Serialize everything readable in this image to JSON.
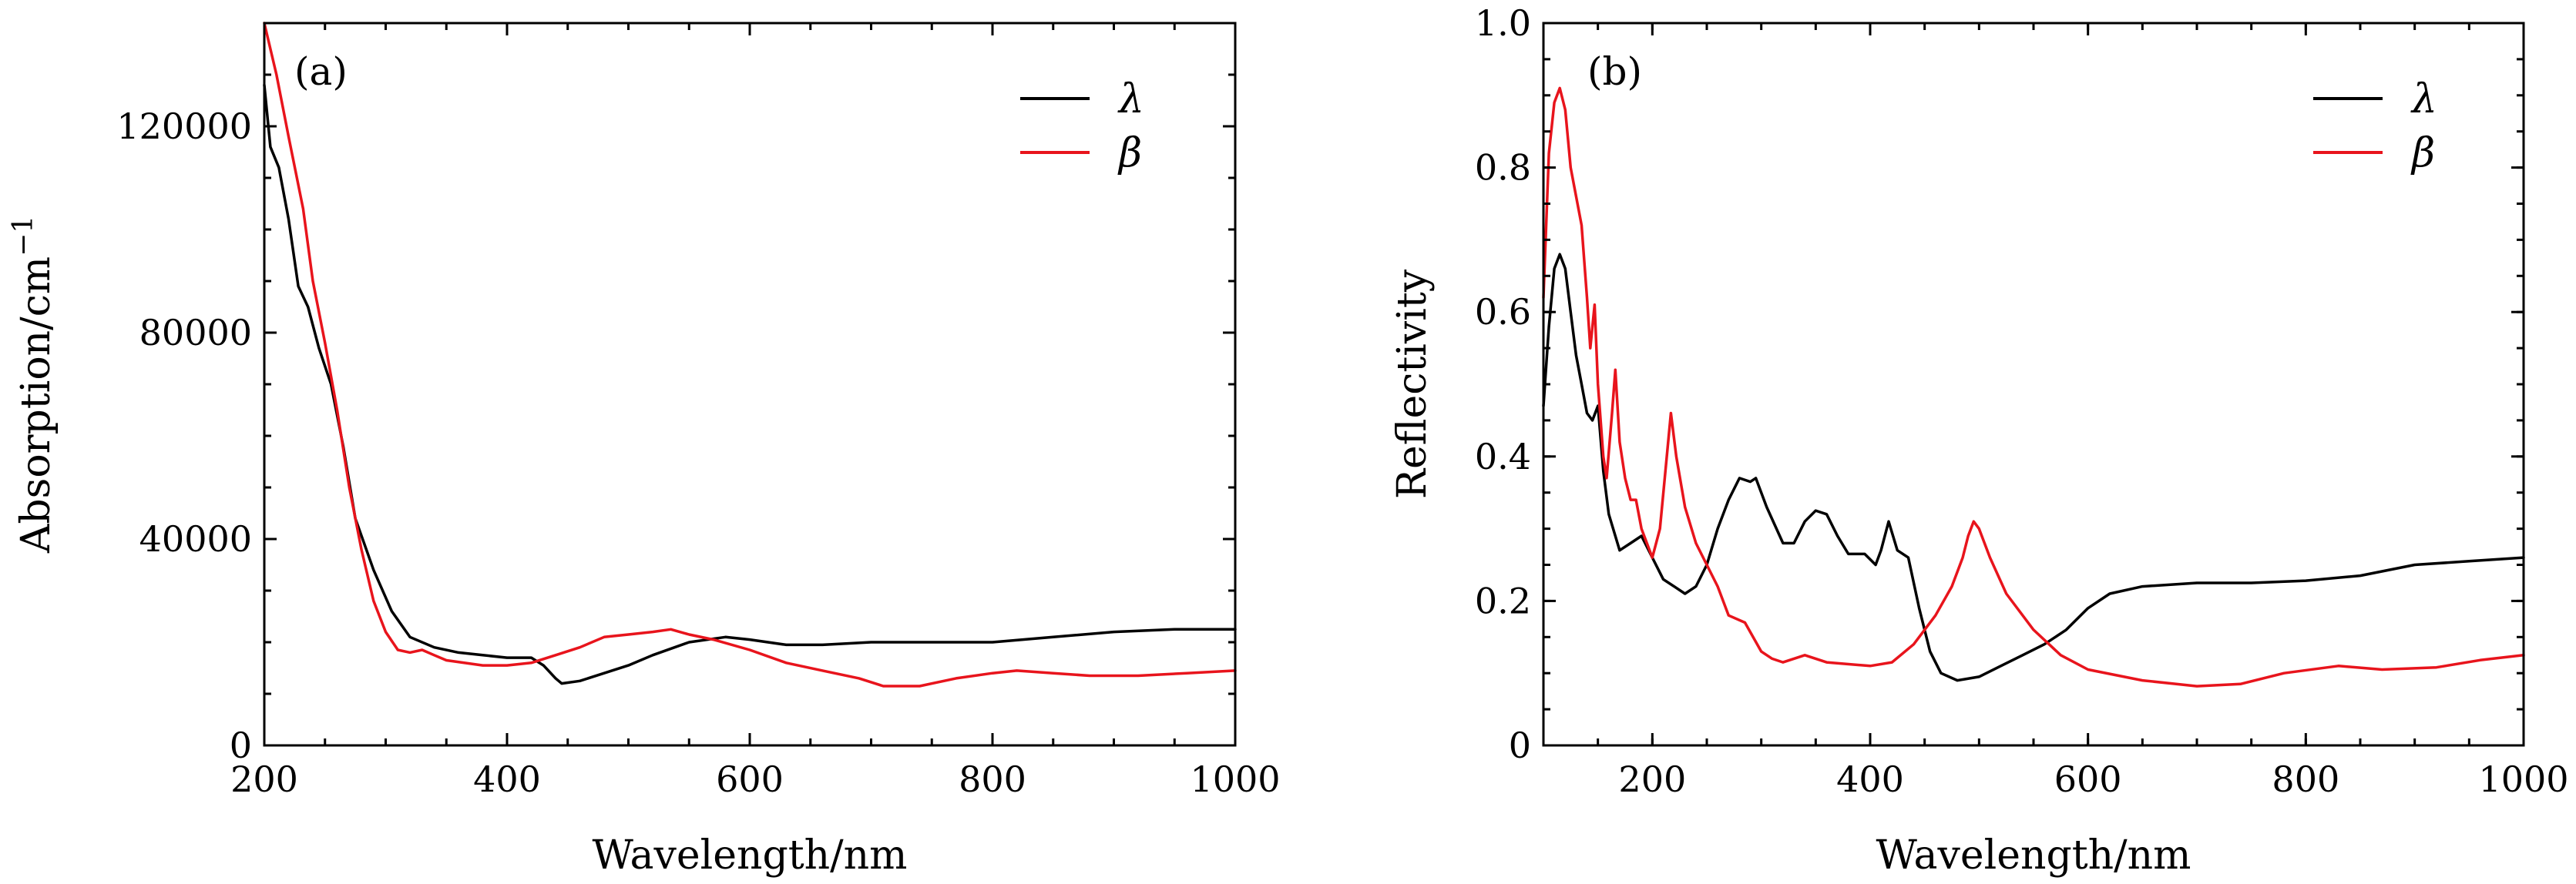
{
  "chart_data": [
    {
      "panel": "(a)",
      "type": "line",
      "xlabel": "Wavelength/nm",
      "ylabel": "Absorption/cm",
      "ylabel_sup": "−1",
      "xlim": [
        200,
        1000
      ],
      "ylim": [
        0,
        140000
      ],
      "x_ticks": [
        200,
        400,
        600,
        800,
        1000
      ],
      "x_tick_labels": [
        "200",
        "400",
        "600",
        "800",
        "1000"
      ],
      "y_ticks": [
        0,
        40000,
        80000,
        120000
      ],
      "y_tick_labels": [
        "0",
        "40000",
        "80000",
        "120000"
      ],
      "x_minor_step": 50,
      "y_minor_step": 10000,
      "legend_position": "top-right",
      "series": [
        {
          "name": "λ",
          "color": "#000000",
          "points": [
            [
              200,
              128000
            ],
            [
              205,
              116000
            ],
            [
              212,
              112000
            ],
            [
              220,
              102000
            ],
            [
              228,
              89000
            ],
            [
              236,
              85000
            ],
            [
              245,
              77000
            ],
            [
              255,
              70000
            ],
            [
              265,
              58000
            ],
            [
              275,
              44000
            ],
            [
              290,
              34000
            ],
            [
              305,
              26000
            ],
            [
              320,
              21000
            ],
            [
              340,
              19000
            ],
            [
              360,
              18000
            ],
            [
              380,
              17500
            ],
            [
              400,
              17000
            ],
            [
              420,
              17000
            ],
            [
              430,
              15500
            ],
            [
              440,
              13000
            ],
            [
              445,
              12000
            ],
            [
              460,
              12500
            ],
            [
              480,
              14000
            ],
            [
              500,
              15500
            ],
            [
              520,
              17500
            ],
            [
              550,
              20000
            ],
            [
              580,
              21000
            ],
            [
              600,
              20500
            ],
            [
              630,
              19500
            ],
            [
              660,
              19500
            ],
            [
              700,
              20000
            ],
            [
              800,
              20000
            ],
            [
              850,
              21000
            ],
            [
              900,
              22000
            ],
            [
              950,
              22500
            ],
            [
              1000,
              22500
            ]
          ]
        },
        {
          "name": "β",
          "color": "#e8141c",
          "points": [
            [
              200,
              140000
            ],
            [
              210,
              130000
            ],
            [
              220,
              118000
            ],
            [
              232,
              104000
            ],
            [
              240,
              90000
            ],
            [
              250,
              78000
            ],
            [
              260,
              65000
            ],
            [
              270,
              50000
            ],
            [
              280,
              38000
            ],
            [
              290,
              28000
            ],
            [
              300,
              22000
            ],
            [
              310,
              18500
            ],
            [
              320,
              18000
            ],
            [
              330,
              18500
            ],
            [
              340,
              17500
            ],
            [
              350,
              16500
            ],
            [
              380,
              15500
            ],
            [
              400,
              15500
            ],
            [
              420,
              16000
            ],
            [
              440,
              17500
            ],
            [
              460,
              19000
            ],
            [
              480,
              21000
            ],
            [
              500,
              21500
            ],
            [
              520,
              22000
            ],
            [
              535,
              22500
            ],
            [
              550,
              21500
            ],
            [
              570,
              20500
            ],
            [
              600,
              18500
            ],
            [
              630,
              16000
            ],
            [
              660,
              14500
            ],
            [
              690,
              13000
            ],
            [
              710,
              11500
            ],
            [
              740,
              11500
            ],
            [
              770,
              13000
            ],
            [
              800,
              14000
            ],
            [
              820,
              14500
            ],
            [
              850,
              14000
            ],
            [
              880,
              13500
            ],
            [
              920,
              13500
            ],
            [
              960,
              14000
            ],
            [
              1000,
              14500
            ]
          ]
        }
      ]
    },
    {
      "panel": "(b)",
      "type": "line",
      "xlabel": "Wavelength/nm",
      "ylabel": "Reflectivity",
      "xlim": [
        100,
        1000
      ],
      "ylim": [
        0,
        1.0
      ],
      "x_ticks": [
        200,
        400,
        600,
        800,
        1000
      ],
      "x_tick_labels": [
        "200",
        "400",
        "600",
        "800",
        "1000"
      ],
      "y_ticks": [
        0,
        0.2,
        0.4,
        0.6,
        0.8,
        1.0
      ],
      "y_tick_labels": [
        "0",
        "0.2",
        "0.4",
        "0.6",
        "0.8",
        "1.0"
      ],
      "x_minor_step": 50,
      "y_minor_step": 0.05,
      "legend_position": "top-right",
      "series": [
        {
          "name": "λ",
          "color": "#000000",
          "points": [
            [
              100,
              0.47
            ],
            [
              105,
              0.58
            ],
            [
              110,
              0.66
            ],
            [
              115,
              0.68
            ],
            [
              120,
              0.66
            ],
            [
              125,
              0.6
            ],
            [
              130,
              0.54
            ],
            [
              135,
              0.5
            ],
            [
              140,
              0.46
            ],
            [
              145,
              0.45
            ],
            [
              150,
              0.47
            ],
            [
              155,
              0.38
            ],
            [
              160,
              0.32
            ],
            [
              170,
              0.27
            ],
            [
              180,
              0.28
            ],
            [
              190,
              0.29
            ],
            [
              200,
              0.26
            ],
            [
              210,
              0.23
            ],
            [
              220,
              0.22
            ],
            [
              230,
              0.21
            ],
            [
              240,
              0.22
            ],
            [
              250,
              0.25
            ],
            [
              260,
              0.3
            ],
            [
              270,
              0.34
            ],
            [
              280,
              0.37
            ],
            [
              290,
              0.365
            ],
            [
              295,
              0.37
            ],
            [
              305,
              0.33
            ],
            [
              320,
              0.28
            ],
            [
              330,
              0.28
            ],
            [
              340,
              0.31
            ],
            [
              350,
              0.325
            ],
            [
              360,
              0.32
            ],
            [
              370,
              0.29
            ],
            [
              380,
              0.265
            ],
            [
              395,
              0.265
            ],
            [
              405,
              0.25
            ],
            [
              410,
              0.27
            ],
            [
              417,
              0.31
            ],
            [
              425,
              0.27
            ],
            [
              435,
              0.26
            ],
            [
              445,
              0.19
            ],
            [
              455,
              0.13
            ],
            [
              465,
              0.1
            ],
            [
              480,
              0.09
            ],
            [
              500,
              0.095
            ],
            [
              520,
              0.11
            ],
            [
              540,
              0.125
            ],
            [
              560,
              0.14
            ],
            [
              580,
              0.16
            ],
            [
              600,
              0.19
            ],
            [
              620,
              0.21
            ],
            [
              650,
              0.22
            ],
            [
              700,
              0.225
            ],
            [
              750,
              0.225
            ],
            [
              800,
              0.228
            ],
            [
              850,
              0.235
            ],
            [
              900,
              0.25
            ],
            [
              950,
              0.255
            ],
            [
              1000,
              0.26
            ]
          ]
        },
        {
          "name": "β",
          "color": "#e8141c",
          "points": [
            [
              100,
              0.62
            ],
            [
              105,
              0.82
            ],
            [
              110,
              0.89
            ],
            [
              115,
              0.91
            ],
            [
              120,
              0.88
            ],
            [
              125,
              0.8
            ],
            [
              130,
              0.76
            ],
            [
              135,
              0.72
            ],
            [
              140,
              0.62
            ],
            [
              143,
              0.55
            ],
            [
              147,
              0.61
            ],
            [
              150,
              0.5
            ],
            [
              155,
              0.4
            ],
            [
              158,
              0.37
            ],
            [
              163,
              0.46
            ],
            [
              166,
              0.52
            ],
            [
              170,
              0.42
            ],
            [
              175,
              0.37
            ],
            [
              180,
              0.34
            ],
            [
              185,
              0.34
            ],
            [
              190,
              0.3
            ],
            [
              200,
              0.26
            ],
            [
              207,
              0.3
            ],
            [
              212,
              0.38
            ],
            [
              217,
              0.46
            ],
            [
              222,
              0.4
            ],
            [
              230,
              0.33
            ],
            [
              240,
              0.28
            ],
            [
              250,
              0.25
            ],
            [
              260,
              0.22
            ],
            [
              270,
              0.18
            ],
            [
              285,
              0.17
            ],
            [
              300,
              0.13
            ],
            [
              310,
              0.12
            ],
            [
              320,
              0.115
            ],
            [
              340,
              0.125
            ],
            [
              360,
              0.115
            ],
            [
              400,
              0.11
            ],
            [
              420,
              0.115
            ],
            [
              440,
              0.14
            ],
            [
              460,
              0.18
            ],
            [
              475,
              0.22
            ],
            [
              485,
              0.26
            ],
            [
              490,
              0.29
            ],
            [
              495,
              0.31
            ],
            [
              500,
              0.3
            ],
            [
              510,
              0.26
            ],
            [
              525,
              0.21
            ],
            [
              550,
              0.16
            ],
            [
              575,
              0.125
            ],
            [
              600,
              0.105
            ],
            [
              650,
              0.09
            ],
            [
              700,
              0.082
            ],
            [
              740,
              0.085
            ],
            [
              780,
              0.1
            ],
            [
              830,
              0.11
            ],
            [
              870,
              0.105
            ],
            [
              920,
              0.108
            ],
            [
              960,
              0.118
            ],
            [
              1000,
              0.125
            ]
          ]
        }
      ]
    }
  ]
}
